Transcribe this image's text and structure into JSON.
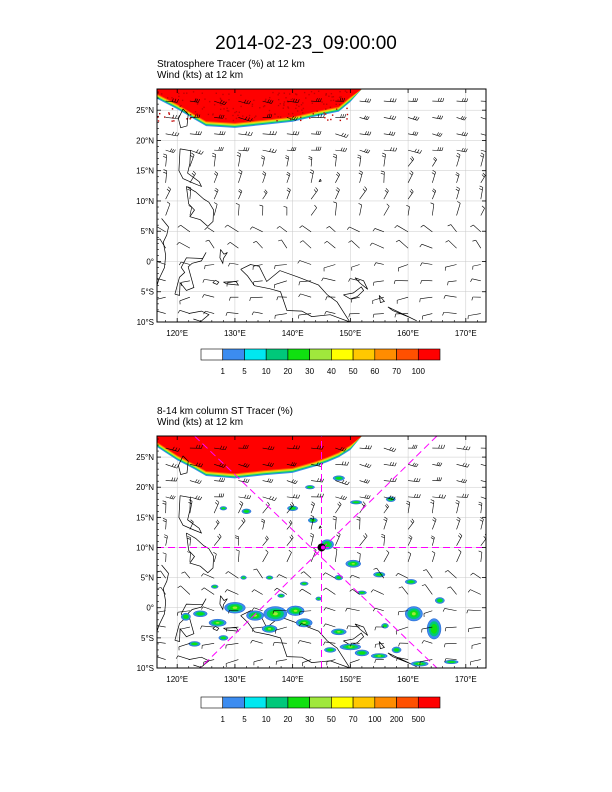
{
  "main_title": "2014-02-23_09:00:00",
  "chart_data": [
    {
      "type": "heatmap",
      "title_line1": "Stratosphere Tracer   (%)     at   12 km",
      "title_line2": "Wind   (kts)     at  12 km",
      "x_tick_labels": [
        "120°E",
        "130°E",
        "140°E",
        "150°E",
        "160°E",
        "170°E"
      ],
      "x_ticks": [
        120,
        130,
        140,
        150,
        160,
        170
      ],
      "y_tick_labels": [
        "25°N",
        "20°N",
        "15°N",
        "10°N",
        "5°N",
        "0°",
        "5°S",
        "10°S"
      ],
      "y_ticks": [
        25,
        20,
        15,
        10,
        5,
        0,
        -5,
        -10
      ],
      "xlim": [
        116.5,
        173.5
      ],
      "ylim": [
        -10,
        28.5
      ],
      "colorbar_labels": [
        "1",
        "5",
        "10",
        "20",
        "30",
        "40",
        "50",
        "60",
        "70",
        "100"
      ],
      "colorbar_colors": [
        "#ffffff",
        "#3c8cf0",
        "#00e8f0",
        "#00c87a",
        "#10e010",
        "#a0e83c",
        "#ffff00",
        "#ffc800",
        "#ff8c00",
        "#ff5000",
        "#ff0000"
      ],
      "high_region_boundary": [
        [
          116.5,
          28.5
        ],
        [
          116.5,
          27.7
        ],
        [
          120,
          26
        ],
        [
          123,
          24.3
        ],
        [
          125,
          23.2
        ],
        [
          130,
          22.9
        ],
        [
          135,
          23.4
        ],
        [
          140,
          23.9
        ],
        [
          144,
          24.8
        ],
        [
          146,
          25.2
        ],
        [
          148,
          25.6
        ],
        [
          150,
          27.2
        ],
        [
          152,
          28.5
        ]
      ]
    },
    {
      "type": "heatmap",
      "title_line1": "8-14 km column ST Tracer   (%)",
      "title_line2": "Wind   (kts)     at  12 km",
      "x_tick_labels": [
        "120°E",
        "130°E",
        "140°E",
        "150°E",
        "160°E",
        "170°E"
      ],
      "x_ticks": [
        120,
        130,
        140,
        150,
        160,
        170
      ],
      "y_tick_labels": [
        "25°N",
        "20°N",
        "15°N",
        "10°N",
        "5°N",
        "0°",
        "5°S",
        "10°S"
      ],
      "y_ticks": [
        25,
        20,
        15,
        10,
        5,
        0,
        -5,
        -10
      ],
      "xlim": [
        116.5,
        173.5
      ],
      "ylim": [
        -10,
        28.5
      ],
      "colorbar_labels": [
        "1",
        "5",
        "10",
        "20",
        "30",
        "50",
        "70",
        "100",
        "200",
        "500"
      ],
      "colorbar_colors": [
        "#ffffff",
        "#3c8cf0",
        "#00e8f0",
        "#00c87a",
        "#10e010",
        "#a0e83c",
        "#ffff00",
        "#ffc800",
        "#ff8c00",
        "#ff5000",
        "#ff0000"
      ],
      "high_region_boundary": [
        [
          116.5,
          28.5
        ],
        [
          116.5,
          27.5
        ],
        [
          120,
          25.3
        ],
        [
          123,
          23.8
        ],
        [
          125,
          22.7
        ],
        [
          130,
          22.3
        ],
        [
          135,
          22.8
        ],
        [
          140,
          23.2
        ],
        [
          144,
          24.3
        ],
        [
          146,
          25
        ],
        [
          148,
          25.8
        ],
        [
          150,
          27
        ],
        [
          152,
          28.5
        ]
      ],
      "target_marker": {
        "lon": 145,
        "lat": 10
      },
      "guide_lines": [
        {
          "from": [
            116.5,
            10
          ],
          "to": [
            173.5,
            10
          ]
        },
        {
          "from": [
            145,
            -10
          ],
          "to": [
            145,
            28.5
          ]
        },
        {
          "from": [
            123,
            28.5
          ],
          "to": [
            165,
            -10
          ]
        },
        {
          "from": [
            165,
            28.5
          ],
          "to": [
            124,
            -10
          ]
        }
      ]
    }
  ]
}
